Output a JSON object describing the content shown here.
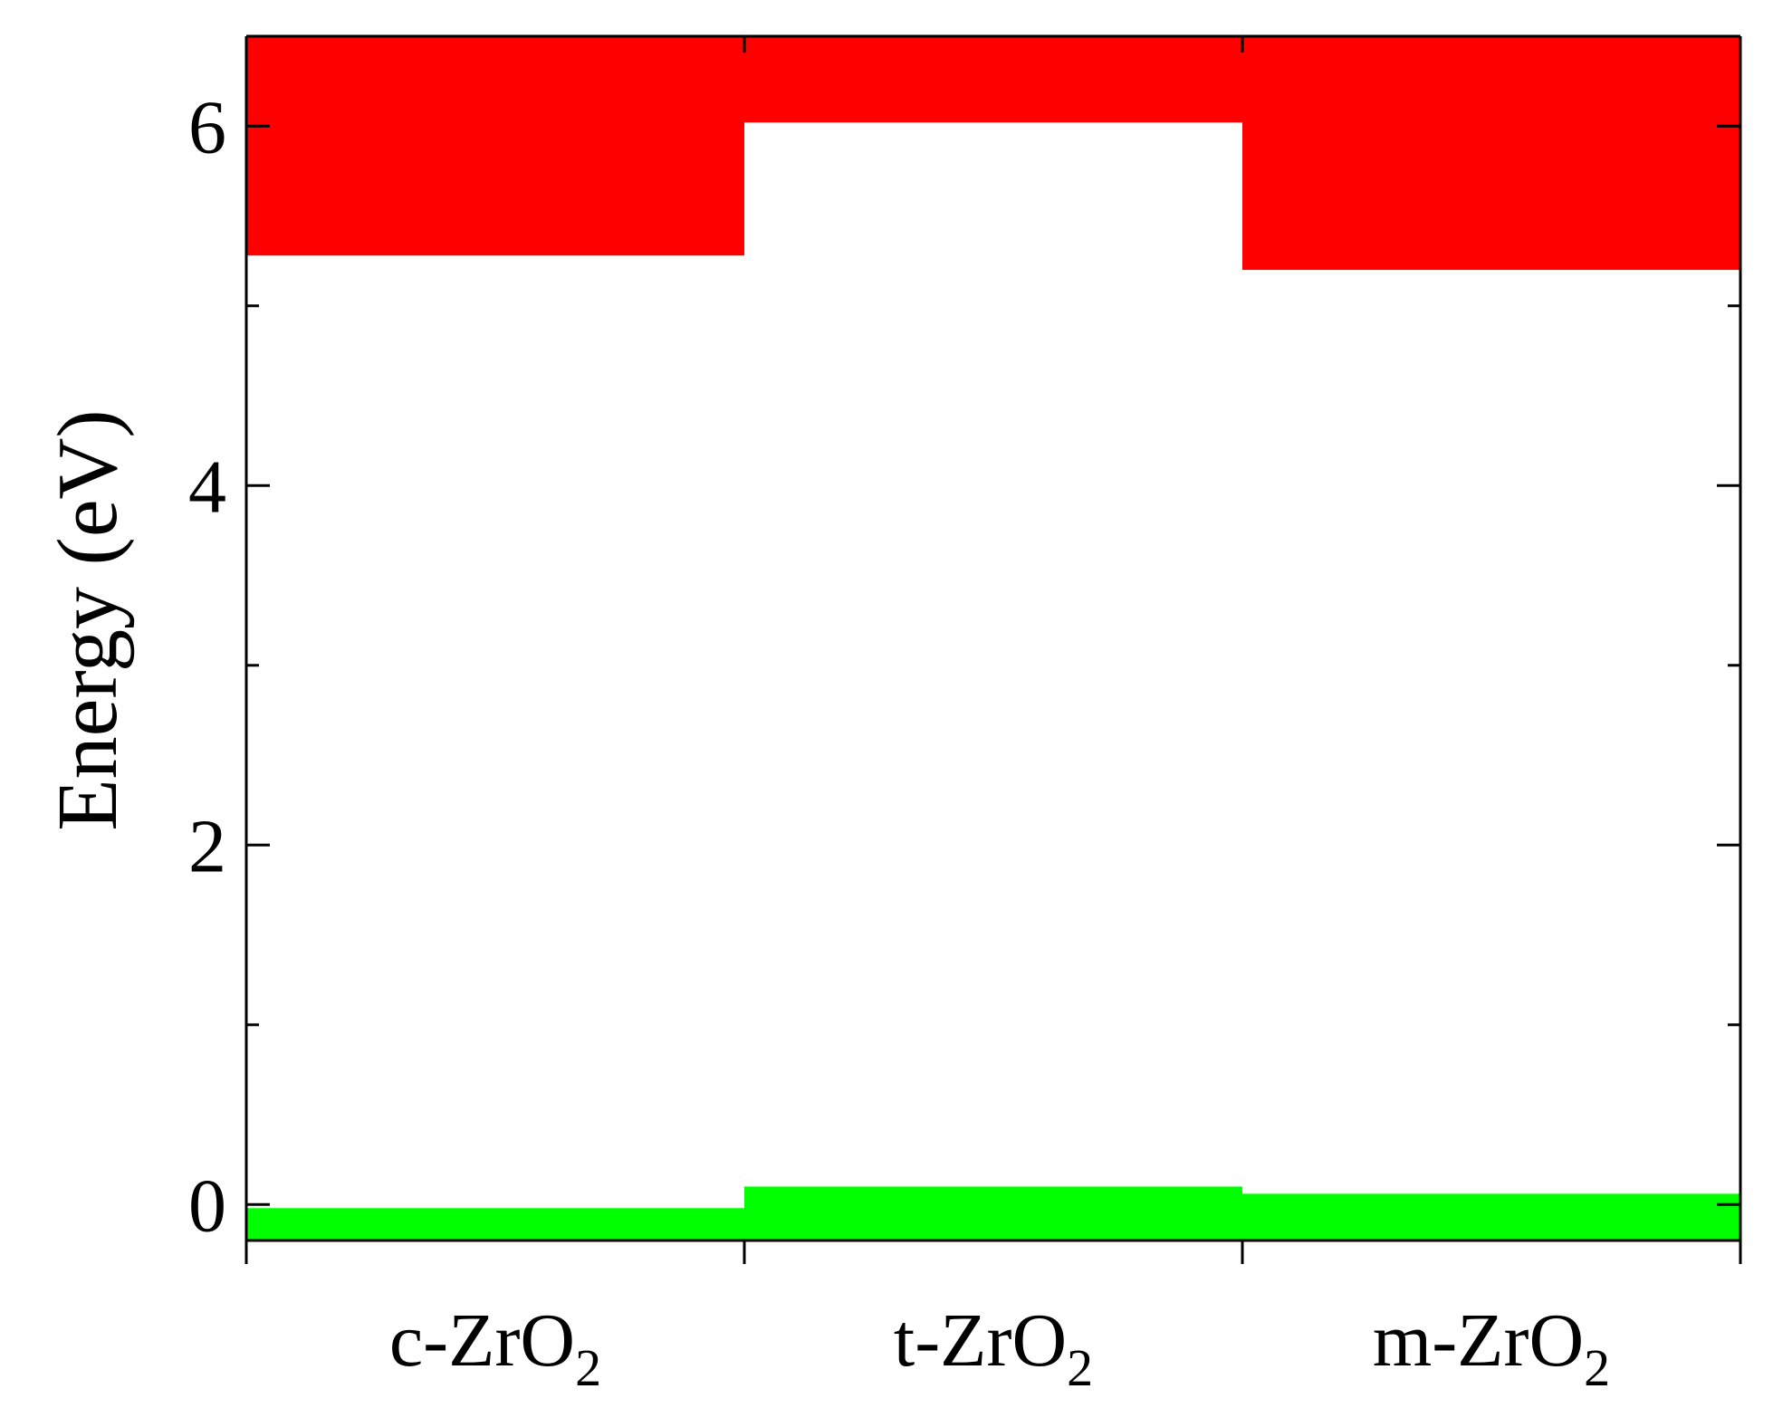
{
  "chart_data": {
    "type": "bar",
    "title": "",
    "xlabel": "",
    "ylabel": "Energy (eV)",
    "ylim": [
      -0.2,
      6.5
    ],
    "yticks_major": [
      0,
      2,
      4,
      6
    ],
    "yticks_minor": [
      1,
      3,
      5
    ],
    "grid": false,
    "categories": [
      {
        "main": "c-ZrO",
        "sub": "2"
      },
      {
        "main": "t-ZrO",
        "sub": "2"
      },
      {
        "main": "m-ZrO",
        "sub": "2"
      }
    ],
    "series": [
      {
        "color": "#ff0000",
        "bottom": [
          5.28,
          6.02,
          5.2
        ],
        "top": [
          6.5,
          6.5,
          6.5
        ]
      },
      {
        "color": "#00ff00",
        "bottom": [
          -0.2,
          -0.2,
          -0.2
        ],
        "top": [
          -0.02,
          0.1,
          0.06
        ]
      }
    ]
  }
}
